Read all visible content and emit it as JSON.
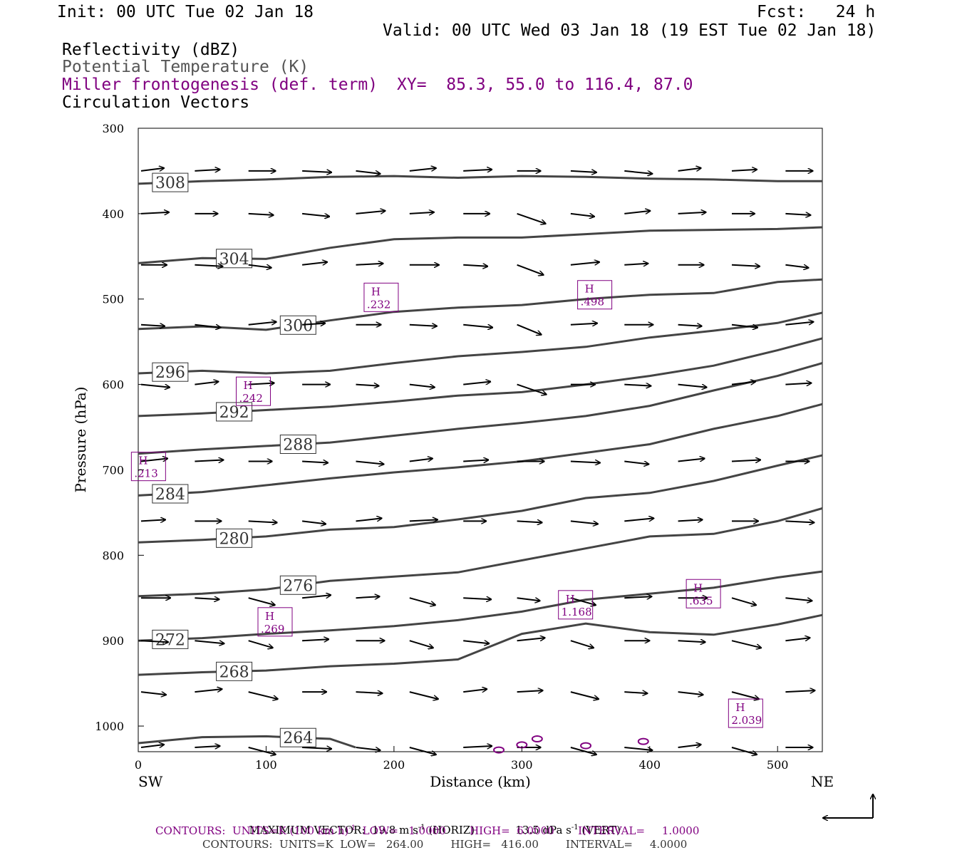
{
  "header": {
    "init": "Init: 00 UTC Tue 02 Jan 18",
    "fcst": "Fcst:   24 h",
    "valid": "Valid: 00 UTC Wed 03 Jan 18 (19 EST Tue 02 Jan 18)",
    "line_reflectivity": "Reflectivity (dBZ)",
    "line_theta": "Potential Temperature (K)",
    "line_frontogenesis": "Miller frontogenesis (def. term)",
    "xy": "XY=  85.3, 55.0 to 116.4, 87.0",
    "line_vectors": "Circulation Vectors"
  },
  "colors": {
    "theta": "#444444",
    "frontogenesis": "#800080",
    "vectors": "#000000",
    "axes": "#000000"
  },
  "chart_data": {
    "type": "cross-section",
    "xlabel": "Distance (km)",
    "ylabel": "Pressure (hPa)",
    "xlim": [
      0,
      535
    ],
    "ylim": [
      1030,
      300
    ],
    "x_ticks": [
      "0",
      "100",
      "200",
      "300",
      "400",
      "500"
    ],
    "y_ticks": [
      "300",
      "400",
      "500",
      "600",
      "700",
      "800",
      "900",
      "1000"
    ],
    "left_end_label": "SW",
    "right_end_label": "NE",
    "theta_contours": [
      {
        "label": "308",
        "x": [
          0,
          50,
          100,
          150,
          200,
          250,
          300,
          350,
          400,
          450,
          500,
          535
        ],
        "p": [
          365,
          362,
          360,
          357,
          356,
          358,
          356,
          357,
          359,
          360,
          362,
          362
        ]
      },
      {
        "label": "304",
        "x": [
          0,
          50,
          100,
          150,
          200,
          250,
          300,
          350,
          400,
          450,
          500,
          535
        ],
        "p": [
          458,
          452,
          453,
          440,
          430,
          428,
          428,
          424,
          420,
          419,
          418,
          416
        ]
      },
      {
        "label": "300",
        "x": [
          0,
          50,
          100,
          150,
          200,
          250,
          300,
          350,
          400,
          450,
          500,
          535
        ],
        "p": [
          535,
          532,
          536,
          525,
          515,
          510,
          507,
          500,
          495,
          493,
          480,
          477
        ]
      },
      {
        "label": "296",
        "x": [
          0,
          50,
          100,
          150,
          200,
          250,
          300,
          350,
          400,
          450,
          500,
          535
        ],
        "p": [
          587,
          584,
          587,
          584,
          575,
          567,
          562,
          556,
          545,
          537,
          528,
          516
        ]
      },
      {
        "label": "292",
        "x": [
          0,
          50,
          100,
          150,
          200,
          250,
          300,
          350,
          400,
          450,
          500,
          535
        ],
        "p": [
          637,
          634,
          630,
          626,
          620,
          613,
          609,
          600,
          590,
          578,
          560,
          546
        ]
      },
      {
        "label": "288",
        "x": [
          0,
          50,
          100,
          150,
          200,
          250,
          300,
          350,
          400,
          450,
          500,
          535
        ],
        "p": [
          681,
          676,
          672,
          668,
          660,
          652,
          645,
          637,
          625,
          607,
          590,
          575
        ]
      },
      {
        "label": "284",
        "x": [
          0,
          50,
          100,
          150,
          200,
          250,
          300,
          350,
          400,
          450,
          500,
          535
        ],
        "p": [
          730,
          726,
          718,
          710,
          703,
          697,
          690,
          680,
          670,
          652,
          637,
          623
        ]
      },
      {
        "label": "280",
        "x": [
          0,
          50,
          100,
          150,
          200,
          250,
          300,
          350,
          400,
          450,
          500,
          535
        ],
        "p": [
          785,
          782,
          778,
          770,
          767,
          758,
          748,
          733,
          727,
          713,
          695,
          683
        ]
      },
      {
        "label": "276",
        "x": [
          0,
          50,
          100,
          150,
          200,
          250,
          300,
          350,
          400,
          450,
          500,
          535
        ],
        "p": [
          848,
          845,
          840,
          830,
          825,
          820,
          806,
          792,
          778,
          775,
          760,
          745
        ]
      },
      {
        "label": "272",
        "x": [
          0,
          50,
          100,
          150,
          200,
          250,
          300,
          350,
          400,
          450,
          500,
          535
        ],
        "p": [
          900,
          897,
          892,
          888,
          883,
          876,
          866,
          852,
          845,
          838,
          826,
          819
        ]
      },
      {
        "label": "268",
        "x": [
          0,
          50,
          100,
          150,
          200,
          250,
          300,
          350,
          400,
          450,
          500,
          535
        ],
        "p": [
          940,
          937,
          935,
          930,
          927,
          922,
          892,
          880,
          890,
          893,
          881,
          870
        ]
      },
      {
        "label": "264",
        "x": [
          0,
          50,
          100,
          150,
          170
        ],
        "p": [
          1020,
          1013,
          1012,
          1015,
          1025
        ]
      }
    ],
    "frontogenesis_maxima": [
      {
        "label": "H",
        "value": ".232",
        "x": 190,
        "p": 498
      },
      {
        "label": "H",
        "value": ".242",
        "x": 90,
        "p": 608
      },
      {
        "label": "H",
        "value": ".213",
        "x": 8,
        "p": 696
      },
      {
        "label": "H",
        "value": ".498",
        "x": 357,
        "p": 495
      },
      {
        "label": "H",
        "value": ".269",
        "x": 107,
        "p": 878
      },
      {
        "label": "H",
        "value": "1.168",
        "x": 342,
        "p": 858
      },
      {
        "label": "H",
        "value": ".635",
        "x": 442,
        "p": 845
      },
      {
        "label": "H",
        "value": "2.039",
        "x": 475,
        "p": 985
      }
    ],
    "footer": {
      "max_vector_title": "MAXIMUM VECTOR:",
      "max_vector_horiz": "19.8 m s",
      "max_vector_horiz_unit": "(HORIZ)",
      "max_vector_vert": "13.5 dPa s",
      "max_vector_vert_unit": "(VERT)",
      "exponent": "-1",
      "contours_fronto_prefix": "CONTOURS:  UNITS=K (100 km h)",
      "contours_fronto_suffix": "  LOW=   1.0000       HIGH=  6.0000       INTERVAL=     1.0000",
      "contours_theta": "CONTOURS:  UNITS=K  LOW=   264.00        HIGH=   416.00        INTERVAL=     4.0000"
    }
  }
}
